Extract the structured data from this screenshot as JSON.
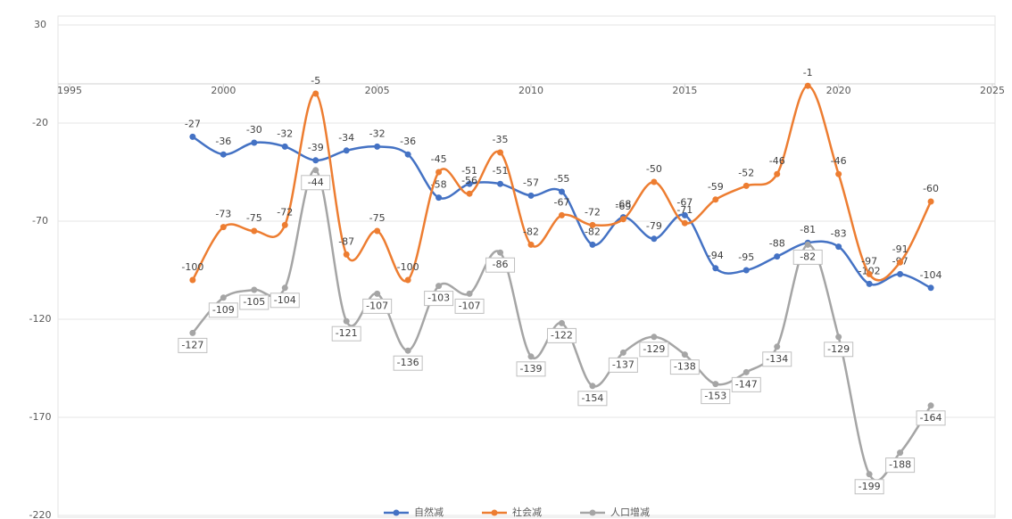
{
  "chart_data": {
    "type": "line",
    "x": [
      1999,
      2000,
      2001,
      2002,
      2003,
      2004,
      2005,
      2006,
      2007,
      2008,
      2009,
      2010,
      2011,
      2012,
      2013,
      2014,
      2015,
      2016,
      2017,
      2018,
      2019,
      2020,
      2021,
      2022,
      2023
    ],
    "series": [
      {
        "name": "自然减",
        "color": "#4472c4",
        "values": [
          -27,
          -36,
          -30,
          -32,
          -39,
          -34,
          -32,
          -36,
          -58,
          -51,
          -51,
          -57,
          -55,
          -82,
          -68,
          -79,
          -67,
          -94,
          -95,
          -88,
          -81,
          -83,
          -102,
          -97,
          -104
        ]
      },
      {
        "name": "社会减",
        "color": "#ed7d31",
        "values": [
          -100,
          -73,
          -75,
          -72,
          -5,
          -87,
          -75,
          -100,
          -45,
          -56,
          -35,
          -82,
          -67,
          -72,
          -69,
          -50,
          -71,
          -59,
          -52,
          -46,
          -1,
          -46,
          -97,
          -91,
          -60
        ]
      },
      {
        "name": "人口增减",
        "color": "#a5a5a5",
        "values": [
          -127,
          -109,
          -105,
          -104,
          -44,
          -121,
          -107,
          -136,
          -103,
          -107,
          -86,
          -139,
          -122,
          -154,
          -137,
          -129,
          -138,
          -153,
          -147,
          -134,
          -82,
          -129,
          -199,
          -188,
          -164
        ]
      }
    ],
    "xlim": [
      1995,
      2025
    ],
    "xticks": [
      1995,
      2000,
      2005,
      2010,
      2015,
      2020,
      2025
    ],
    "ylim": [
      -220,
      30
    ],
    "yticks": [
      30,
      -20,
      -70,
      -120,
      -170,
      -220
    ],
    "grid": true,
    "legend": "bottom"
  }
}
